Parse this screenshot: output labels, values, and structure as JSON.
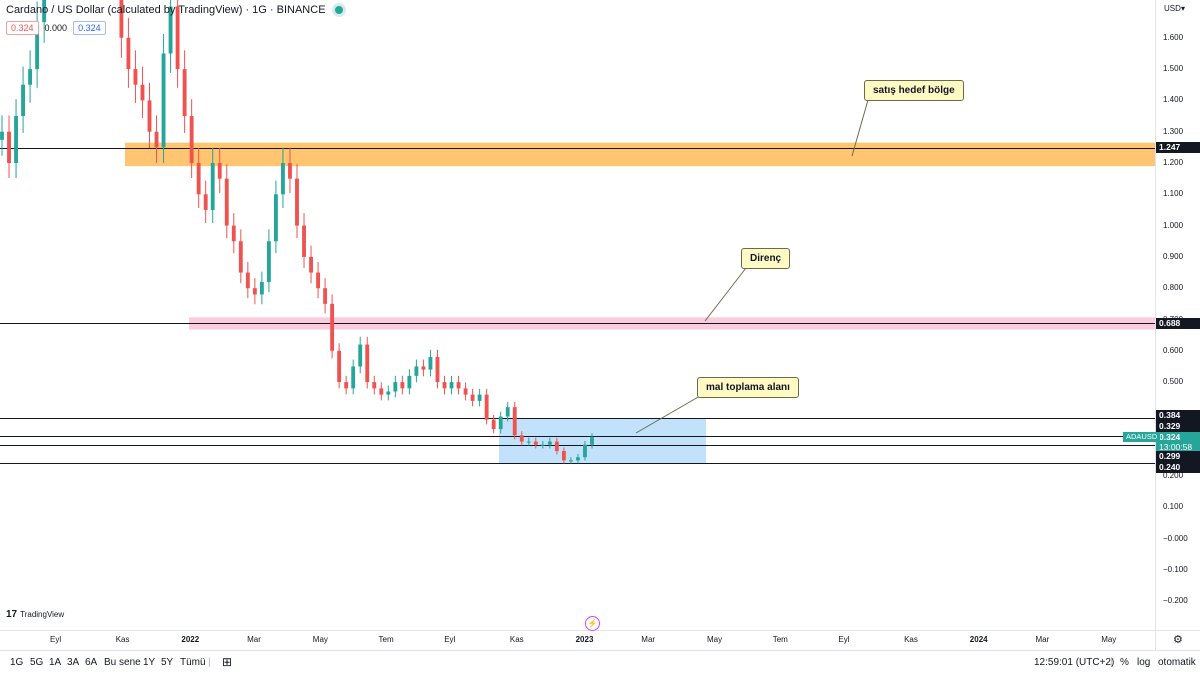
{
  "header": {
    "title": "Cardano / US Dollar (calculated by TradingView) · 1G · BINANCE",
    "values": [
      "0.324",
      "0.000",
      "0.324"
    ]
  },
  "callouts": {
    "sell": "satış hedef bölge",
    "resistance": "Direnç",
    "accumulation": "mal toplama alanı"
  },
  "price_axis": {
    "currency": "USD",
    "tags": {
      "p1247": "1.247",
      "p688": "0.688",
      "p384": "0.384",
      "p329": "0.329",
      "last": "0.324",
      "countdown": "13:00:58",
      "p299": "0.299",
      "p240": "0.240"
    },
    "symbol_tag": "ADAUSD"
  },
  "bottom_bar": {
    "ranges": [
      "1G",
      "5G",
      "1A",
      "3A",
      "6A",
      "Bu sene",
      "1Y",
      "5Y",
      "Tümü"
    ],
    "clock": "12:59:01 (UTC+2)",
    "percent": "%",
    "log": "log",
    "auto": "otomatik"
  },
  "brand": "TradingView",
  "colors": {
    "up": "#26a69a",
    "down": "#ef5350",
    "sell_zone": "#ffb74d",
    "resistance_zone": "#f8bbd0",
    "accumulation_zone": "#90caf9"
  },
  "chart_data": {
    "type": "candlestick",
    "y_ticks": [
      1.6,
      1.5,
      1.4,
      1.3,
      1.2,
      1.1,
      1.0,
      0.9,
      0.8,
      0.7,
      0.6,
      0.5,
      0.2,
      0.1,
      -0.0,
      -0.1,
      -0.2
    ],
    "y_tick_labels": [
      "1.600",
      "1.500",
      "1.400",
      "1.300",
      "1.200",
      "1.100",
      "1.000",
      "0.900",
      "0.800",
      "0.700",
      "0.600",
      "0.500",
      "0.200",
      "0.100",
      "−0.000",
      "−0.100",
      "−0.200"
    ],
    "x_ticks": [
      "Eyl",
      "Kas",
      "2022",
      "Mar",
      "May",
      "Tem",
      "Eyl",
      "Kas",
      "2023",
      "Mar",
      "May",
      "Tem",
      "Eyl",
      "Kas",
      "2024",
      "Mar",
      "May"
    ],
    "bold_x_ticks": [
      "2022",
      "2023",
      "2024"
    ],
    "horizontal_lines": [
      1.247,
      0.688,
      0.384,
      0.329,
      0.299,
      0.24
    ],
    "zones": [
      {
        "name": "satış hedef bölge",
        "from": 1.19,
        "to": 1.265
      },
      {
        "name": "Direnç",
        "from": 0.668,
        "to": 0.707
      },
      {
        "name": "mal toplama alanı",
        "from": 0.24,
        "to": 0.384
      }
    ],
    "series": [
      {
        "name": "ADAUSD",
        "close": [
          1.3,
          1.2,
          1.35,
          1.45,
          1.5,
          1.65,
          1.9,
          2.3,
          2.5,
          2.6,
          2.7,
          2.4,
          2.2,
          2.0,
          2.1,
          1.9,
          1.8,
          1.6,
          1.5,
          1.45,
          1.4,
          1.3,
          1.25,
          1.55,
          1.7,
          1.5,
          1.35,
          1.2,
          1.1,
          1.05,
          1.2,
          1.15,
          1.0,
          0.95,
          0.85,
          0.8,
          0.78,
          0.82,
          0.95,
          1.1,
          1.2,
          1.15,
          1.0,
          0.9,
          0.85,
          0.8,
          0.75,
          0.6,
          0.5,
          0.48,
          0.55,
          0.62,
          0.5,
          0.48,
          0.46,
          0.47,
          0.5,
          0.48,
          0.52,
          0.55,
          0.54,
          0.58,
          0.5,
          0.48,
          0.5,
          0.48,
          0.46,
          0.44,
          0.46,
          0.38,
          0.35,
          0.39,
          0.42,
          0.33,
          0.31,
          0.31,
          0.3,
          0.3,
          0.31,
          0.28,
          0.25,
          0.25,
          0.26,
          0.3,
          0.324
        ]
      }
    ],
    "last_price": 0.324
  }
}
